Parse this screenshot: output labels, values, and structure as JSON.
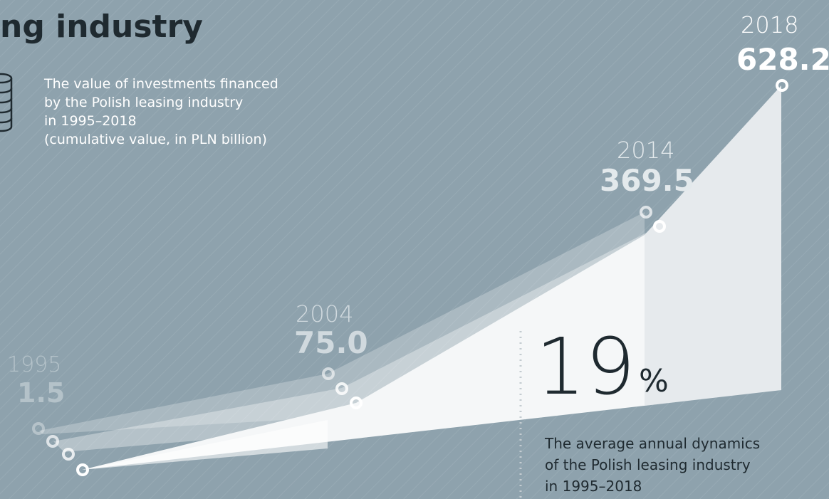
{
  "header": {
    "title": "ng industry"
  },
  "description": [
    "The value of investments financed",
    "by the Polish leasing industry",
    "in 1995–2018",
    "(cumulative value, in PLN billion)"
  ],
  "milestones": [
    {
      "year": "1995",
      "value": "1.5"
    },
    {
      "year": "2004",
      "value": "75.0"
    },
    {
      "year": "2014",
      "value": "369.5"
    },
    {
      "year": "2018",
      "value": "628.2"
    }
  ],
  "stat": {
    "value": "19",
    "unit": "%"
  },
  "stat_caption": [
    "The average annual dynamics",
    "of the Polish leasing industry",
    "in 1995–2018"
  ]
}
